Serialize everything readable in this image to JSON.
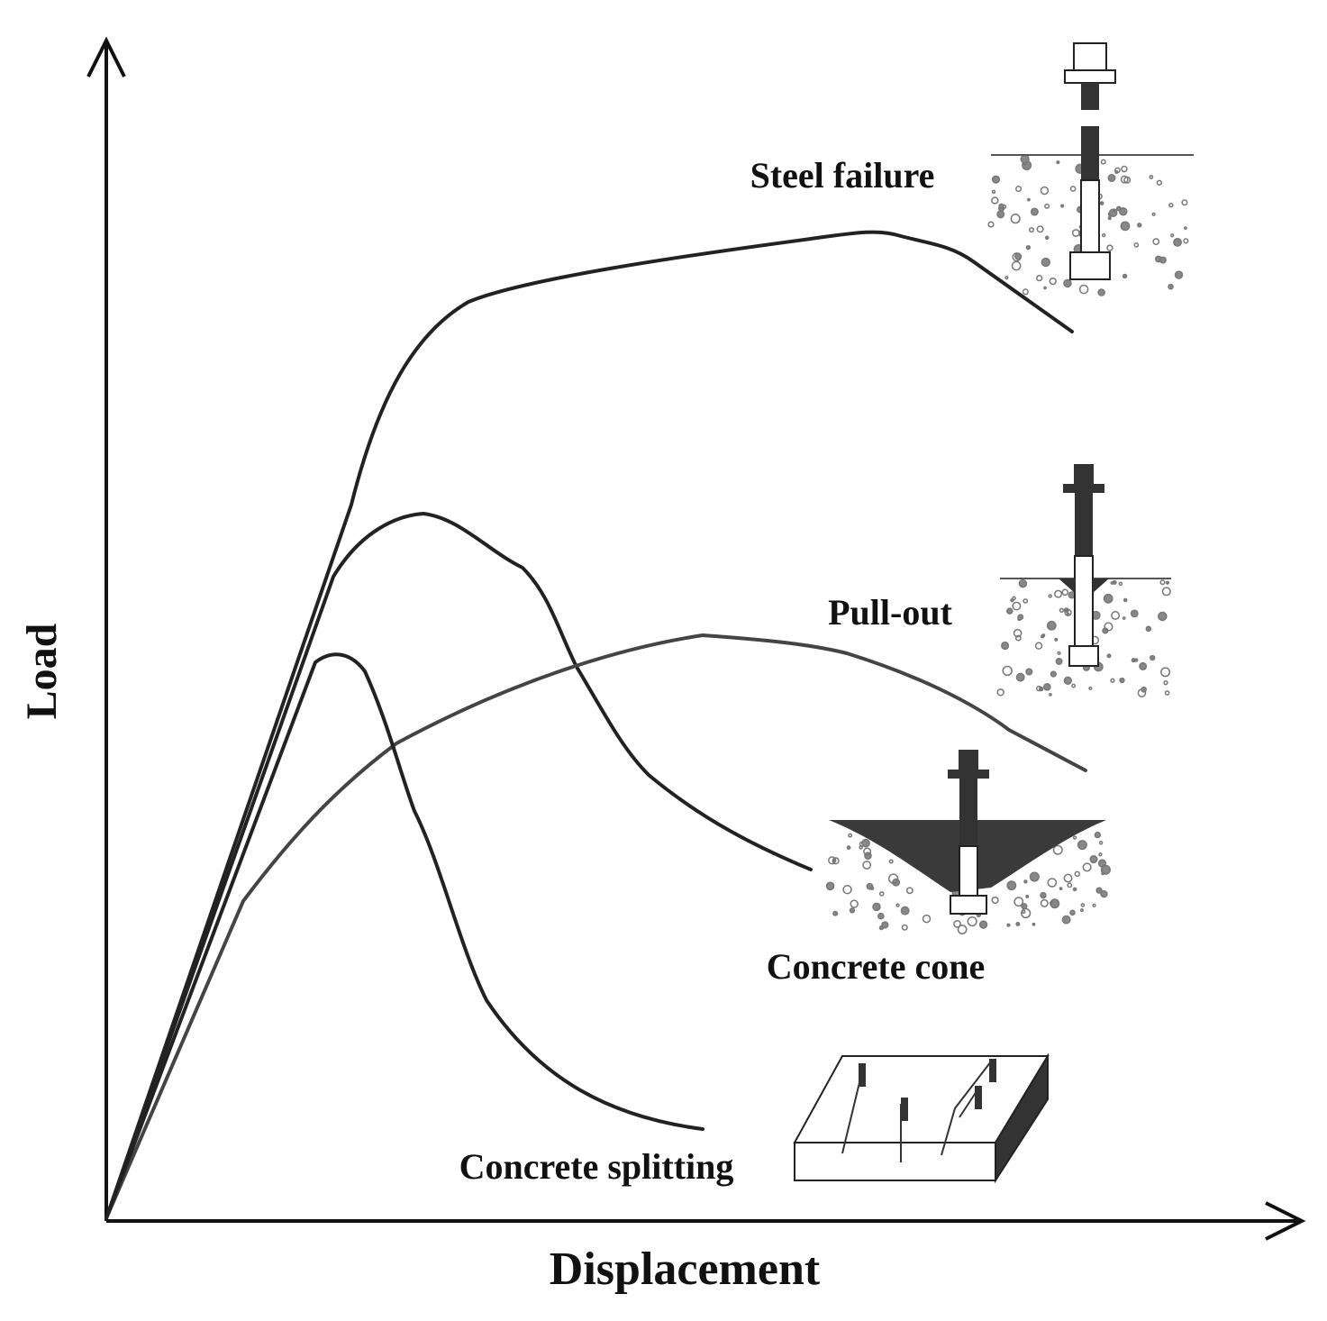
{
  "diagram": {
    "axes": {
      "y": "Load",
      "x": "Displacement"
    },
    "failure_modes": [
      "Steel failure",
      "Pull-out",
      "Concrete cone",
      "Concrete splitting"
    ]
  }
}
